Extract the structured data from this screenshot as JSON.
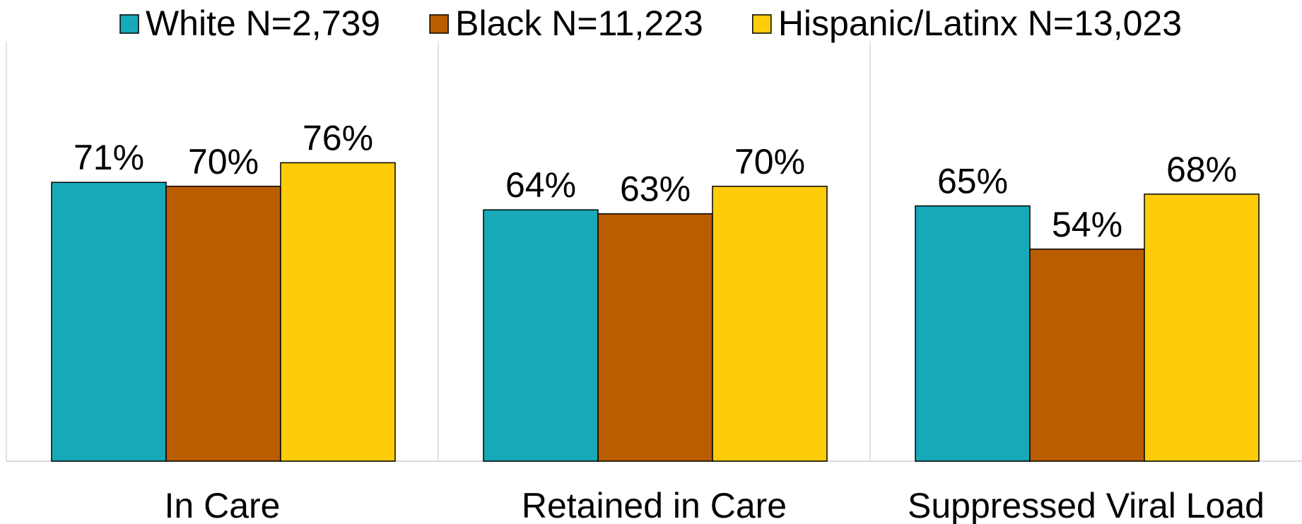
{
  "chart_data": {
    "type": "bar",
    "categories": [
      "In Care",
      "Retained in Care",
      "Suppressed Viral Load"
    ],
    "series": [
      {
        "name": "White N=2,739",
        "color": "#16A9B8",
        "values": [
          71,
          64,
          65
        ],
        "labels": [
          "71%",
          "64%",
          "65%"
        ]
      },
      {
        "name": "Black N=11,223",
        "color": "#BA5C00",
        "values": [
          70,
          63,
          54
        ],
        "labels": [
          "70%",
          "63%",
          "54%"
        ]
      },
      {
        "name": "Hispanic/Latinx N=13,023",
        "color": "#FFCC0A",
        "values": [
          76,
          70,
          68
        ],
        "labels": [
          "76%",
          "70%",
          "68%"
        ]
      }
    ],
    "ylim": [
      0,
      100
    ],
    "grid": false,
    "legend_position": "top",
    "title": "",
    "xlabel": "",
    "ylabel": ""
  }
}
